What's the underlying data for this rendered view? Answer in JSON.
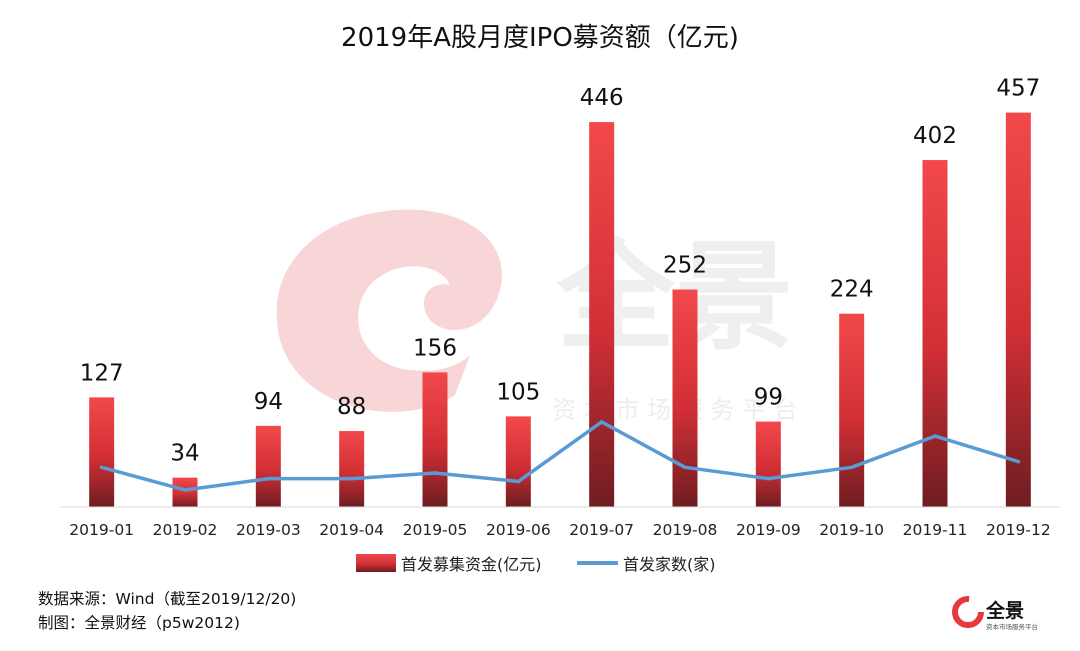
{
  "chart_data": {
    "type": "bar",
    "title": "2019年A股月度IPO募资额（亿元)",
    "categories": [
      "2019-01",
      "2019-02",
      "2019-03",
      "2019-04",
      "2019-05",
      "2019-06",
      "2019-07",
      "2019-08",
      "2019-09",
      "2019-10",
      "2019-11",
      "2019-12"
    ],
    "series": [
      {
        "name": "首发募集资金(亿元)",
        "type": "bar",
        "color": "#e8383d",
        "values": [
          127,
          34,
          94,
          88,
          156,
          105,
          446,
          252,
          99,
          224,
          402,
          457
        ]
      },
      {
        "name": "首发家数(家)",
        "type": "line",
        "color": "#5b9bd5",
        "values": [
          14,
          6,
          10,
          10,
          12,
          9,
          30,
          14,
          10,
          14,
          25,
          16
        ]
      }
    ],
    "bar_ylim": [
      0,
      460
    ],
    "line_ylim": [
      0,
      140
    ],
    "data_labels": true,
    "legend_position": "bottom",
    "grid": false
  },
  "notes": {
    "source": "数据来源：Wind（截至2019/12/20)",
    "author": "制图：全景财经（p5w2012)"
  },
  "watermark": {
    "brand": "全景",
    "sub": "资 本 市 场 服 务 平 台"
  },
  "logo": {
    "text": "全景",
    "sub": "资本市场服务平台"
  }
}
